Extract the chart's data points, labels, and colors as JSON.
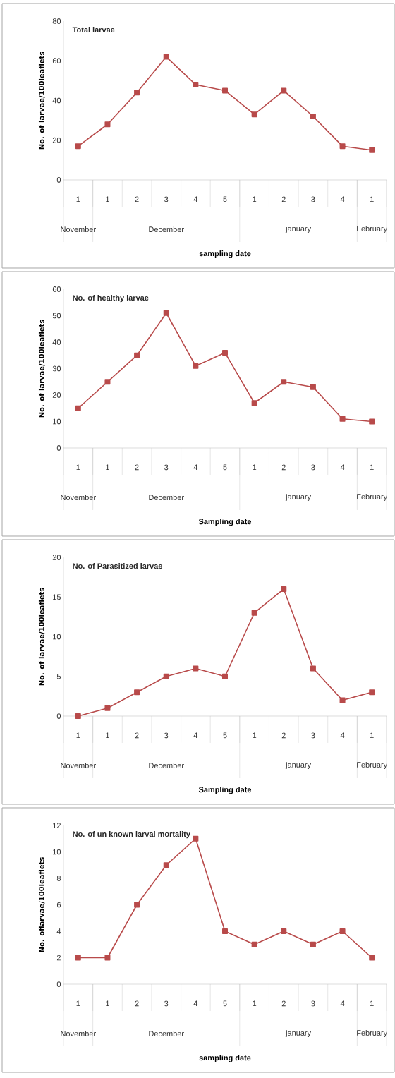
{
  "chart_data": [
    {
      "type": "line",
      "title": "Total larvae",
      "xlabel": "sampling date",
      "ylabel": "No. of larvae/100leaflets",
      "categories": [
        "1",
        "1",
        "2",
        "3",
        "4",
        "5",
        "1",
        "2",
        "3",
        "4",
        "1"
      ],
      "values": [
        17,
        28,
        44,
        62,
        48,
        45,
        33,
        45,
        32,
        17,
        15
      ],
      "color": "#b84a4a",
      "marker": "square",
      "ylim": [
        0,
        80
      ],
      "yticks": [
        0,
        20,
        40,
        60,
        80
      ],
      "annotations": [
        "November",
        "December",
        "january",
        "February"
      ]
    },
    {
      "type": "line",
      "title": "No. of healthy larvae",
      "xlabel": "Sampling date",
      "ylabel": "No. of larvae/100leaflets",
      "categories": [
        "1",
        "1",
        "2",
        "3",
        "4",
        "5",
        "1",
        "2",
        "3",
        "4",
        "1"
      ],
      "values": [
        15,
        25,
        35,
        51,
        31,
        36,
        17,
        25,
        23,
        11,
        10
      ],
      "color": "#b84a4a",
      "marker": "square",
      "ylim": [
        0,
        60
      ],
      "yticks": [
        0,
        10,
        20,
        30,
        40,
        50,
        60
      ],
      "annotations": [
        "November",
        "December",
        "january",
        "February"
      ]
    },
    {
      "type": "line",
      "title": "No. of Parasitized larvae",
      "xlabel": "Sampling date",
      "ylabel": "No. of larvae/100leaflets",
      "categories": [
        "1",
        "1",
        "2",
        "3",
        "4",
        "5",
        "1",
        "2",
        "3",
        "4",
        "1"
      ],
      "values": [
        0,
        1,
        3,
        5,
        6,
        5,
        13,
        16,
        6,
        2,
        3
      ],
      "color": "#b84a4a",
      "marker": "square",
      "ylim": [
        0,
        20
      ],
      "yticks": [
        0,
        5,
        10,
        15,
        20
      ],
      "annotations": [
        "November",
        "December",
        "january",
        "February"
      ]
    },
    {
      "type": "line",
      "title": "No. of un known larval  mortality",
      "xlabel": "sampling date",
      "ylabel": "No. oflarvae/100leaflets",
      "categories": [
        "1",
        "1",
        "2",
        "3",
        "4",
        "5",
        "1",
        "2",
        "3",
        "4",
        "1"
      ],
      "values": [
        2,
        2,
        6,
        9,
        11,
        4,
        3,
        4,
        3,
        4,
        2
      ],
      "color": "#b84a4a",
      "marker": "square",
      "ylim": [
        0,
        12
      ],
      "yticks": [
        0,
        2,
        4,
        6,
        8,
        10,
        12
      ],
      "annotations": [
        "November",
        "December",
        "january",
        "February"
      ]
    }
  ]
}
